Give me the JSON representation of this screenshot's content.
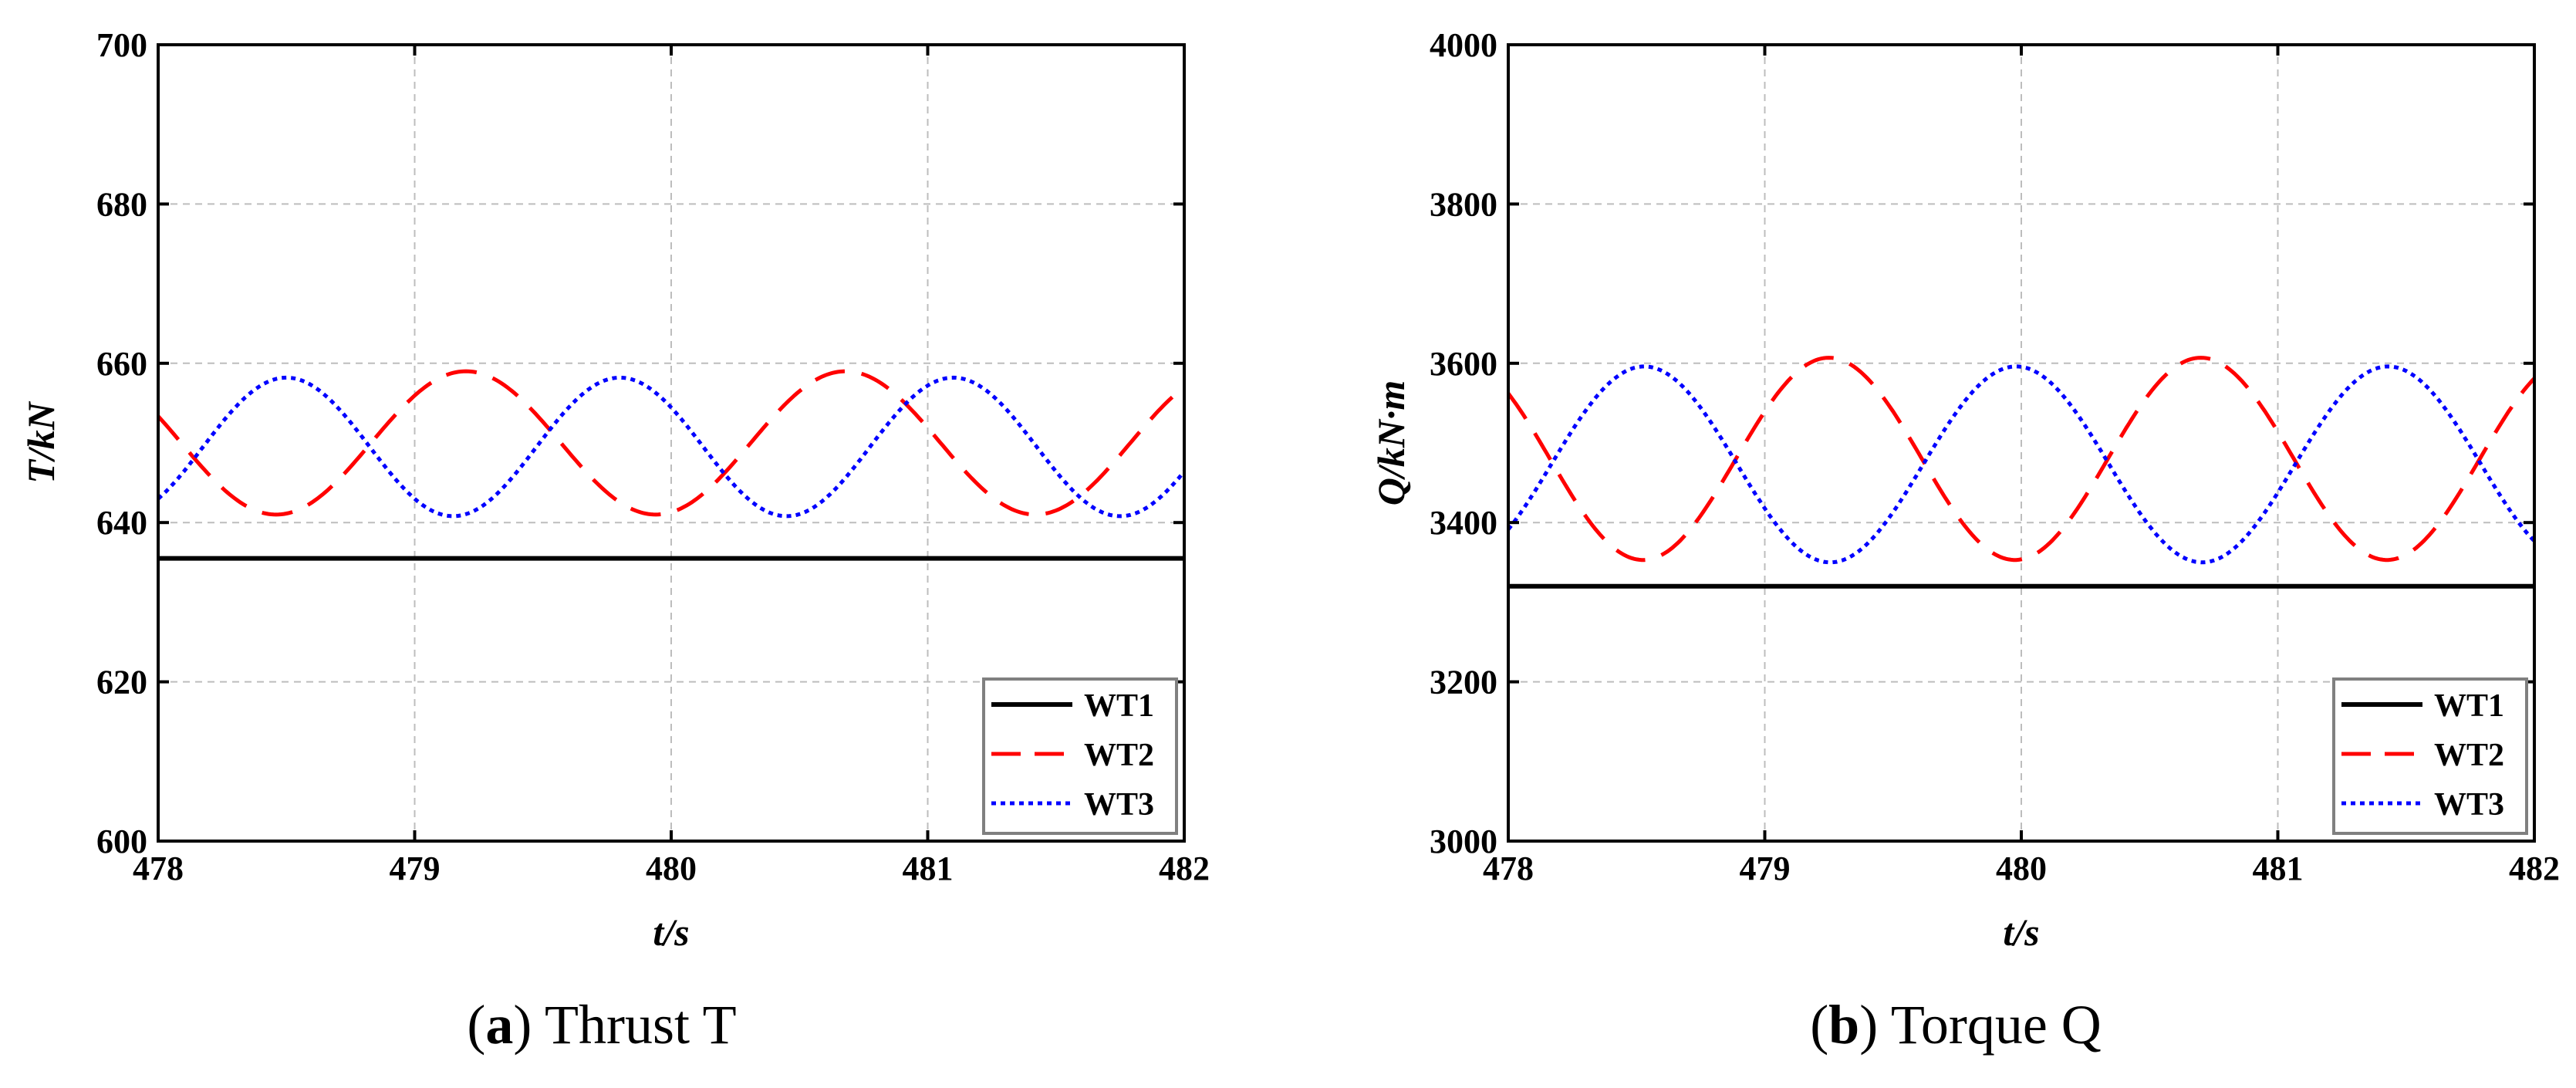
{
  "chart_data": [
    {
      "type": "line",
      "caption_letter": "a",
      "caption_text": "Thrust T",
      "xlabel": "t/s",
      "ylabel_italic": "T",
      "ylabel_rest": "/kN",
      "xlim": [
        478,
        482
      ],
      "ylim": [
        600,
        700
      ],
      "xticks": [
        "478",
        "479",
        "480",
        "481",
        "482"
      ],
      "yticks": [
        "600",
        "620",
        "640",
        "660",
        "680",
        "700"
      ],
      "grid": true,
      "legend_position": "bottom-right",
      "series": [
        {
          "name": "WT1",
          "color": "#000000",
          "style": "solid",
          "kind": "flat",
          "value": 635.5
        },
        {
          "name": "WT2",
          "color": "#ff0000",
          "style": "dashed",
          "kind": "wave",
          "mean": 650,
          "amp": 9,
          "period": 1.48,
          "peak_at": 479.2
        },
        {
          "name": "WT3",
          "color": "#0000ff",
          "style": "dotted",
          "kind": "wave",
          "mean": 649.5,
          "amp": 8.7,
          "period": 1.3,
          "peak_at": 478.5
        }
      ]
    },
    {
      "type": "line",
      "caption_letter": "b",
      "caption_text": "Torque Q",
      "xlabel": "t/s",
      "ylabel_italic": "Q",
      "ylabel_rest": "/kN·m",
      "xlim": [
        478,
        482
      ],
      "ylim": [
        3000,
        4000
      ],
      "xticks": [
        "478",
        "479",
        "480",
        "481",
        "482"
      ],
      "yticks": [
        "3000",
        "3200",
        "3400",
        "3600",
        "3800",
        "4000"
      ],
      "grid": true,
      "legend_position": "bottom-right",
      "series": [
        {
          "name": "WT1",
          "color": "#000000",
          "style": "solid",
          "kind": "flat",
          "value": 3320
        },
        {
          "name": "WT2",
          "color": "#ff0000",
          "style": "dashed",
          "kind": "wave",
          "mean": 3480,
          "amp": 127,
          "period": 1.45,
          "peak_at": 479.25
        },
        {
          "name": "WT3",
          "color": "#0000ff",
          "style": "dotted",
          "kind": "wave",
          "mean": 3473,
          "amp": 123,
          "period": 1.45,
          "peak_at": 478.53
        }
      ]
    }
  ]
}
